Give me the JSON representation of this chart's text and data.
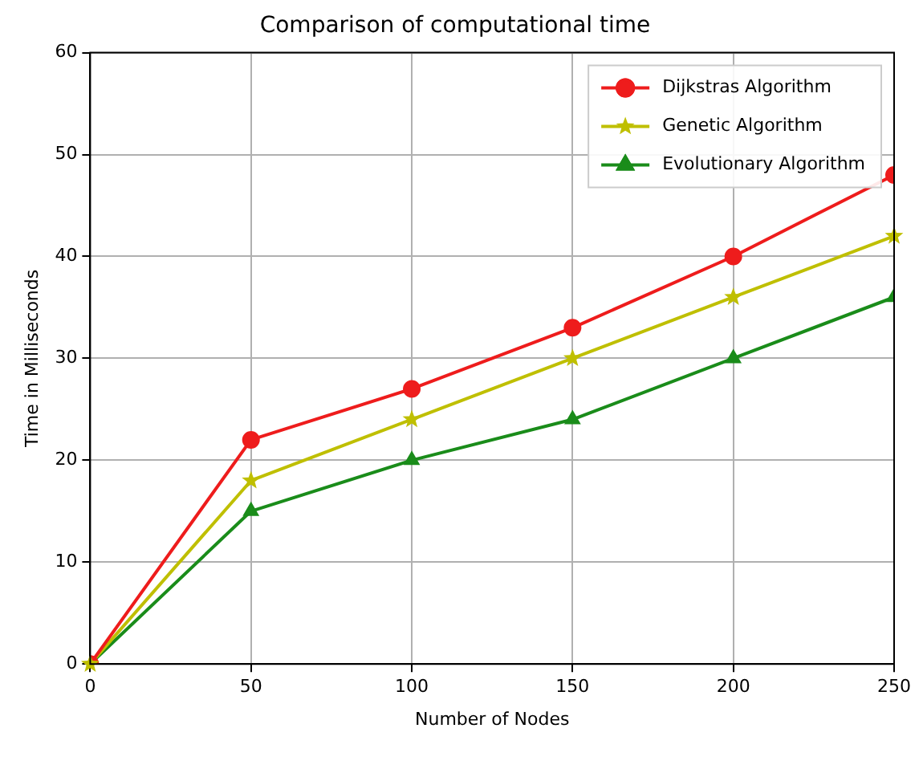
{
  "chart_data": {
    "type": "line",
    "title": "Comparison of computational time",
    "xlabel": "Number of Nodes",
    "ylabel": "Time in Milliseconds",
    "x": [
      0,
      50,
      100,
      150,
      200,
      250
    ],
    "series": [
      {
        "name": "Dijkstras Algorithm",
        "color": "#ee1c1c",
        "marker": "circle",
        "values": [
          0,
          22,
          27,
          33,
          40,
          48
        ]
      },
      {
        "name": "Genetic Algorithm",
        "color": "#bfbf00",
        "marker": "star",
        "values": [
          0,
          18,
          24,
          30,
          36,
          42
        ]
      },
      {
        "name": "Evolutionary Algorithm",
        "color": "#1a8c1a",
        "marker": "triangle",
        "values": [
          0,
          15,
          20,
          24,
          30,
          36
        ]
      }
    ],
    "xlim": [
      0,
      250
    ],
    "xticks": [
      0,
      50,
      100,
      150,
      200,
      250
    ],
    "ylim": [
      0,
      60
    ],
    "yticks": [
      0,
      10,
      20,
      30,
      40,
      50,
      60
    ],
    "grid": true,
    "legend": "top right",
    "line_style": "solid"
  }
}
